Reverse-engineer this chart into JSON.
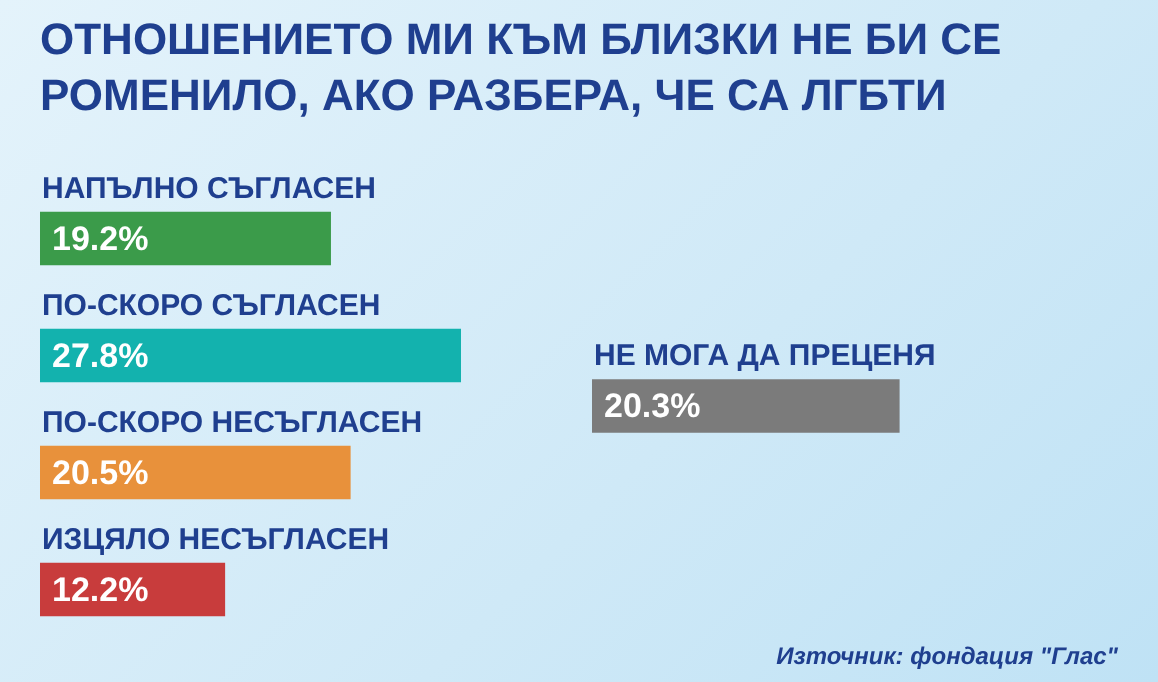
{
  "chart_data": [
    {
      "type": "bar",
      "orientation": "horizontal",
      "title": "ОТНОШЕНИЕТО МИ КЪМ БЛИЗКИ НЕ БИ СЕ РОМЕНИЛО, АКО РАЗБЕРА, ЧЕ СА ЛГБТИ",
      "categories": [
        "НАПЪЛНО СЪГЛАСЕН",
        "ПО-СКОРО СЪГЛАСЕН",
        "ПО-СКОРО НЕСЪГЛАСЕН",
        "ИЗЦЯЛО НЕСЪГЛАСЕН"
      ],
      "values": [
        19.2,
        27.8,
        20.5,
        12.2
      ],
      "value_labels": [
        "19.2%",
        "27.8%",
        "20.5%",
        "12.2%"
      ],
      "colors": [
        "#3b9b4a",
        "#13b2ae",
        "#e8913b",
        "#c83c3c"
      ],
      "annotations": [
        "Източник: фондация \"Глас\""
      ]
    },
    {
      "type": "bar",
      "orientation": "horizontal",
      "categories": [
        "НЕ МОГА ДА ПРЕЦЕНЯ"
      ],
      "values": [
        20.3
      ],
      "value_labels": [
        "20.3%"
      ],
      "colors": [
        "#7b7b7b"
      ]
    }
  ]
}
